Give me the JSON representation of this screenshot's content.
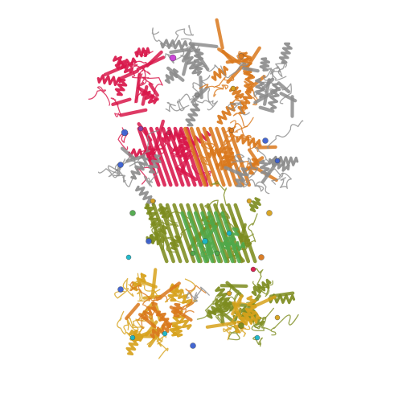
{
  "background": "#ffffff",
  "colors": {
    "crimson": "#d8174a",
    "gray": "#8c8c8c",
    "orange": "#d9781c",
    "olive": "#7d8c1f",
    "gold": "#d7a21c",
    "green": "#4fa84a",
    "cyan": "#19b7c9",
    "blue": "#3a5fd0",
    "purple": "#8b3ea7",
    "magenta": "#c93fd6"
  }
}
